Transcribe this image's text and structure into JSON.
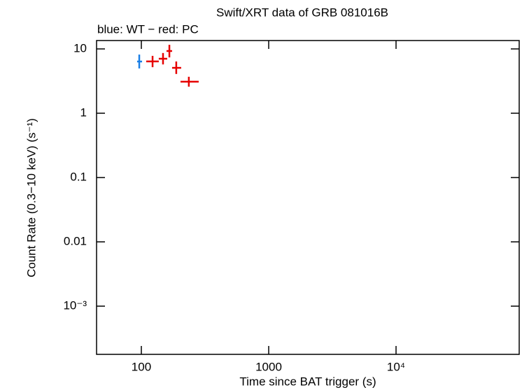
{
  "chart_data": {
    "type": "scatter",
    "title": "Swift/XRT data of GRB 081016B",
    "subtitle": "blue: WT − red: PC",
    "x_label": "Time since BAT trigger (s)",
    "y_label": "Count Rate (0.3−10 keV) (s⁻¹)",
    "x_log": true,
    "y_log": true,
    "xlim": [
      44.5,
      92700
    ],
    "ylim": [
      0.000178,
      13.5
    ],
    "xticks": [
      100,
      1000,
      {
        "value": 10000,
        "label": "10⁴"
      }
    ],
    "yticks": [
      10,
      1,
      0.1,
      0.01,
      {
        "value": 0.001,
        "label": "10⁻³"
      }
    ],
    "series": [
      {
        "name": "WT",
        "color": "#1a7fe6",
        "x": [
          96.3
        ],
        "x_minus": [
          3.6
        ],
        "x_plus": [
          5
        ],
        "values": [
          6.37
        ],
        "y_minus": [
          1.4
        ],
        "y_plus": [
          1.8
        ]
      },
      {
        "name": "PC",
        "color": "#e60000",
        "x": [
          122.5,
          148,
          166,
          188,
          236
        ],
        "x_minus": [
          13.3,
          11,
          8.3,
          13.6,
          33
        ],
        "x_plus": [
          14.5,
          11.7,
          8.4,
          17.5,
          46
        ],
        "values": [
          6.4,
          7.04,
          9.28,
          5.08,
          3.09
        ],
        "y_minus": [
          1.2,
          1.3,
          1.9,
          1.0,
          0.5
        ],
        "y_plus": [
          1.4,
          1.6,
          2.3,
          1.3,
          0.6
        ]
      }
    ]
  }
}
